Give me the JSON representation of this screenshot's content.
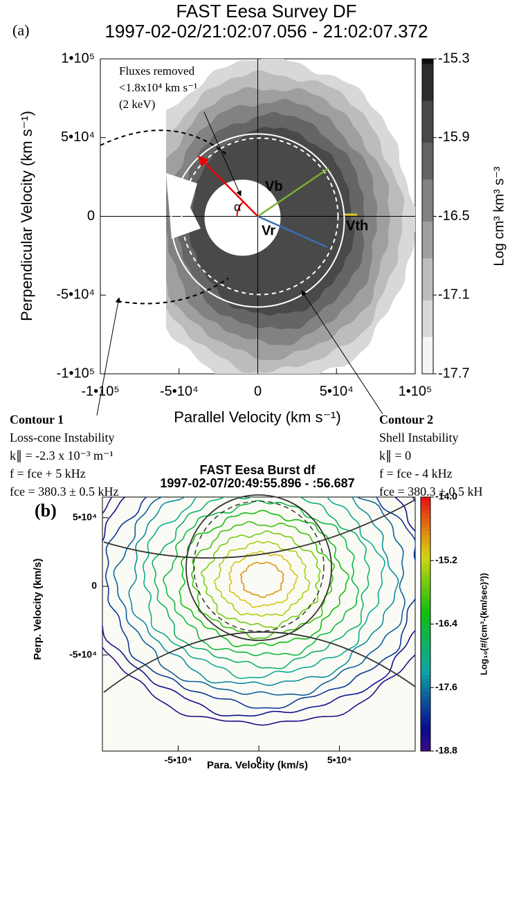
{
  "chart_data": [
    {
      "type": "contour",
      "panel_label": "(a)",
      "title": "FAST  Eesa Survey DF",
      "subtitle": "1997-02-02/21:02:07.056 - 21:02:07.372",
      "x_label": "Parallel Velocity (km s⁻¹)",
      "y_label": "Perpendicular Velocity (km s⁻¹)",
      "xlim": [
        -100000,
        100000
      ],
      "ylim": [
        -100000,
        100000
      ],
      "xticks": [
        {
          "value": -100000,
          "label": "-1•10⁵"
        },
        {
          "value": -50000,
          "label": "-5•10⁴"
        },
        0,
        {
          "value": 50000,
          "label": "5•10⁴"
        },
        {
          "value": 100000,
          "label": "1•10⁵"
        }
      ],
      "yticks": [
        {
          "value": -100000,
          "label": "-1•10⁵"
        },
        {
          "value": -50000,
          "label": "-5•10⁴"
        },
        0,
        {
          "value": 50000,
          "label": "5•10⁴"
        },
        {
          "value": 100000,
          "label": "1•10⁵"
        }
      ],
      "colormap": "gray",
      "clim": [
        -17.7,
        -15.3
      ],
      "cticks": [
        -15.3,
        -15.9,
        -16.5,
        -17.1,
        -17.7
      ],
      "colorbar_label": "Log cm³ km³ s⁻³",
      "levels": [
        -17.4,
        -17.1,
        -16.8,
        -16.5,
        -16.2,
        -15.9
      ],
      "annotations": {
        "fluxes": [
          "Fluxes removed",
          "<1.8x10⁴ km s⁻¹",
          "(2 keV)"
        ],
        "vb": "Vb",
        "vr": "Vr",
        "vth": "Vth",
        "alpha": "α"
      },
      "notes": [
        {
          "title": "Contour 1",
          "lines": [
            "Loss-cone Instability",
            "k∥ = -2.3 x 10⁻³ m⁻¹",
            "f = fce + 5 kHz",
            "fce = 380.3 ± 0.5 kHz"
          ]
        },
        {
          "title": "Contour 2",
          "lines": [
            "Shell Instability",
            "k∥ = 0",
            "f = fce - 4 kHz",
            "fce = 380.3 ± 0.5 kH"
          ]
        }
      ]
    },
    {
      "type": "contour",
      "panel_label": "(b)",
      "title": "FAST  Eesa Burst df",
      "subtitle": "1997-02-07/20:49:55.896 - :56.687",
      "x_label": "Para. Velocity (km/s)",
      "y_label": "Perp. Velocity (km/s)",
      "xlim": [
        -97000,
        97000
      ],
      "ylim": [
        -120000,
        65000
      ],
      "xticks": [
        {
          "value": -50000,
          "label": "-5•10⁴"
        },
        0,
        {
          "value": 50000,
          "label": "5•10⁴"
        }
      ],
      "yticks": [
        {
          "value": 50000,
          "label": "5•10⁴"
        },
        0,
        {
          "value": -50000,
          "label": "-5•10⁴"
        }
      ],
      "colormap": "rainbow",
      "clim": [
        -18.8,
        -14.0
      ],
      "cticks": [
        {
          "value": -14.0,
          "label": "-14.0"
        },
        -15.2,
        -16.4,
        -17.6,
        -18.8
      ],
      "colorbar_label": "Log₁₀(#/(cm³-(km/sec)³))",
      "levels": [
        -18.6,
        -18.3,
        -18.0,
        -17.7,
        -17.4,
        -17.1,
        -16.8,
        -16.5,
        -16.2,
        -15.9,
        -15.6,
        -15.3,
        -15.0,
        -14.7
      ]
    }
  ]
}
